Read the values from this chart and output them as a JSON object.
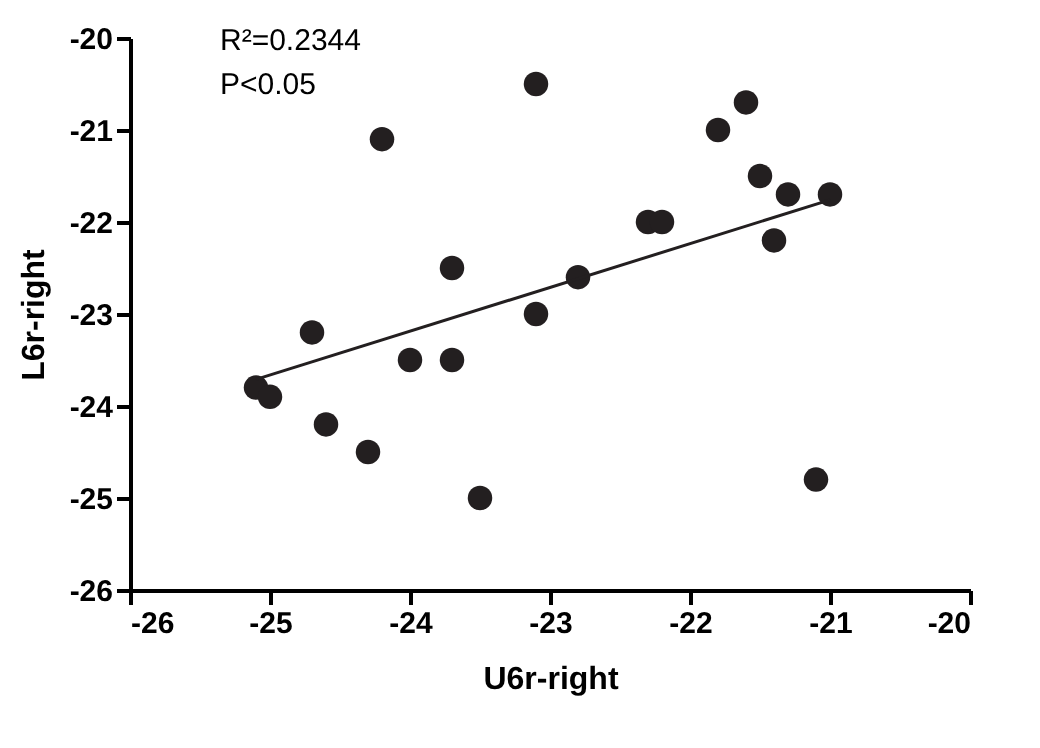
{
  "chart_data": {
    "type": "scatter",
    "xlabel": "U6r-right",
    "ylabel": "L6r-right",
    "xlim": [
      -26,
      -20
    ],
    "xticks": [
      -26,
      -25,
      -24,
      -23,
      -22,
      -21,
      -20
    ],
    "ylim": [
      -26,
      -20
    ],
    "yticks": [
      -26,
      -25,
      -24,
      -23,
      -22,
      -21,
      -20
    ],
    "grid": false,
    "marker": "circle",
    "annotations": [
      "R²=0.2344",
      "P<0.05"
    ],
    "series": [
      {
        "color": "#231f20",
        "x": [
          -25.1,
          -25.0,
          -24.7,
          -24.6,
          -24.3,
          -24.2,
          -24.0,
          -23.7,
          -23.7,
          -23.5,
          -23.1,
          -23.1,
          -22.8,
          -22.3,
          -22.2,
          -21.8,
          -21.6,
          -21.5,
          -21.4,
          -21.3,
          -21.1,
          -21.0
        ],
        "values": [
          -23.8,
          -23.9,
          -23.2,
          -24.2,
          -24.5,
          -21.1,
          -23.5,
          -22.5,
          -23.5,
          -25.0,
          -20.5,
          -23.0,
          -22.6,
          -22.0,
          -22.0,
          -21.0,
          -20.7,
          -21.5,
          -22.2,
          -21.7,
          -24.8,
          -21.7
        ]
      },
      {
        "type": "line",
        "marker": "none",
        "color": "#231f20",
        "x": [
          -25.1,
          -21.0
        ],
        "values": [
          -23.71,
          -21.76
        ]
      }
    ]
  }
}
